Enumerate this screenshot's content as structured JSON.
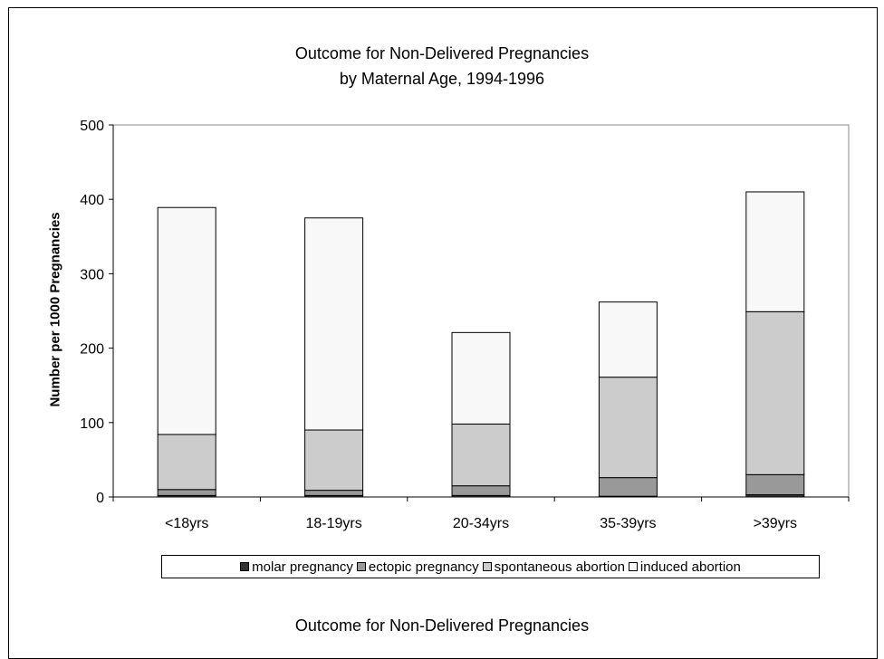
{
  "chart_data": {
    "type": "bar",
    "stacked": true,
    "title": "Outcome for Non-Delivered Pregnancies",
    "subtitle": "by Maternal Age, 1994-1996",
    "ylabel": "Number per 1000 Pregnancies",
    "xlabel": "",
    "ylim": [
      0,
      500
    ],
    "yticks": [
      "0",
      "100",
      "200",
      "300",
      "400",
      "500"
    ],
    "categories": [
      "<18yrs",
      "18-19yrs",
      "20-34yrs",
      "35-39yrs",
      ">39yrs"
    ],
    "series": [
      {
        "name": "molar pregnancy",
        "color": "#333333",
        "values": [
          2,
          2,
          2,
          1,
          3
        ]
      },
      {
        "name": "ectopic pregnancy",
        "color": "#999999",
        "values": [
          8,
          7,
          13,
          25,
          27
        ]
      },
      {
        "name": "spontaneous abortion",
        "color": "#cccccc",
        "values": [
          74,
          81,
          83,
          135,
          219
        ]
      },
      {
        "name": "induced abortion",
        "color": "#f8f8f8",
        "values": [
          305,
          285,
          123,
          101,
          161
        ]
      }
    ],
    "grid": false,
    "legend_position": "bottom"
  },
  "caption": "Outcome for Non-Delivered Pregnancies"
}
